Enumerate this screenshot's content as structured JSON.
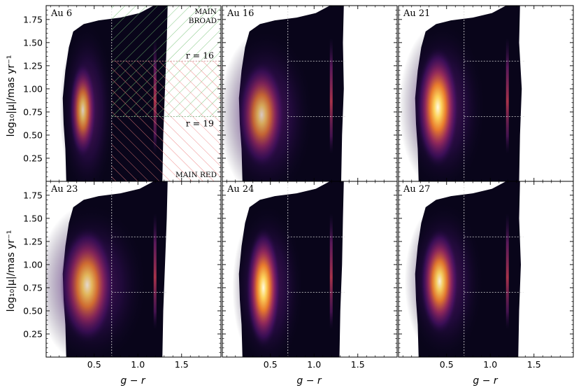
{
  "chart_data": {
    "type": "heatmap",
    "xlabel": "g − r",
    "ylabel": "log₁₀|μ|/mas yr⁻¹",
    "xlim": [
      -0.05,
      1.95
    ],
    "ylim": [
      0.0,
      1.9
    ],
    "xticks": [
      0.5,
      1.0,
      1.5
    ],
    "xtick_labels": [
      "0.5",
      "1.0",
      "1.5"
    ],
    "yticks": [
      0.25,
      0.5,
      0.75,
      1.0,
      1.25,
      1.5,
      1.75
    ],
    "ytick_labels": [
      "0.25",
      "0.50",
      "0.75",
      "1.00",
      "1.25",
      "1.50",
      "1.75"
    ],
    "colormap": "inferno",
    "guide_lines": {
      "vertical_x": 0.7,
      "horizontal_y": [
        1.3,
        0.7
      ]
    },
    "panels": [
      {
        "title": "Au 6",
        "peak": {
          "x": 0.37,
          "y": 0.77
        },
        "sx": 0.07,
        "sy": 0.2,
        "intensity": 0.8,
        "plume_top": 1.05,
        "right_edge": 1.29
      },
      {
        "title": "Au 16",
        "peak": {
          "x": 0.4,
          "y": 0.72
        },
        "sx": 0.12,
        "sy": 0.22,
        "intensity": 0.78,
        "plume_top": 1.02,
        "right_edge": 1.32
      },
      {
        "title": "Au 21",
        "peak": {
          "x": 0.4,
          "y": 0.8
        },
        "sx": 0.11,
        "sy": 0.25,
        "intensity": 1.0,
        "plume_top": 1.02,
        "right_edge": 1.34
      },
      {
        "title": "Au 23",
        "peak": {
          "x": 0.42,
          "y": 0.78
        },
        "sx": 0.14,
        "sy": 0.24,
        "intensity": 0.85,
        "plume_top": 0.98,
        "right_edge": 1.29
      },
      {
        "title": "Au 24",
        "peak": {
          "x": 0.42,
          "y": 0.75
        },
        "sx": 0.09,
        "sy": 0.25,
        "intensity": 1.0,
        "plume_top": 1.0,
        "right_edge": 1.3
      },
      {
        "title": "Au 27",
        "peak": {
          "x": 0.42,
          "y": 0.82
        },
        "sx": 0.1,
        "sy": 0.22,
        "intensity": 0.95,
        "plume_top": 0.96,
        "right_edge": 1.33
      }
    ],
    "annotations": {
      "main_broad": [
        "MAIN",
        "BROAD"
      ],
      "main_red": "MAIN RED",
      "r16": "r = 16",
      "r19": "r = 19"
    },
    "hatch_colors": {
      "broad": "#6fbf6f",
      "red": "#ee7d7d"
    }
  }
}
